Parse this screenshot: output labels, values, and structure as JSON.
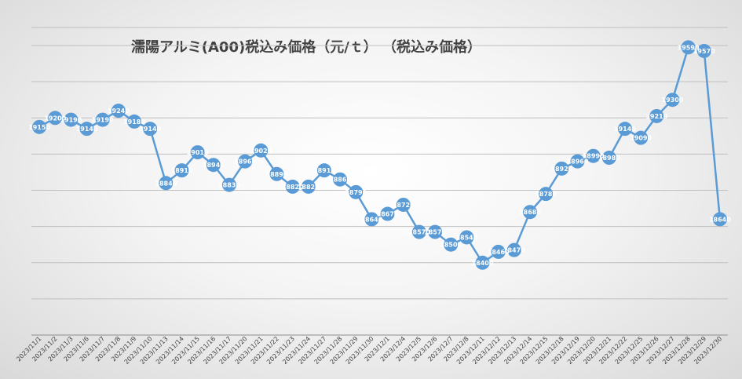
{
  "chart_data": {
    "type": "line",
    "title": "濡陽アルミ(A00)税込み価格（元/ｔ） （税込み価格）",
    "xlabel": "",
    "ylabel": "",
    "ylim": [
      18000,
      19700
    ],
    "grid": true,
    "legend": "none",
    "marker_color": "#5b9bd5",
    "categories": [
      "2023/11/1",
      "2023/11/2",
      "2023/11/3",
      "2023/11/6",
      "2023/11/7",
      "2023/11/8",
      "2023/11/9",
      "2023/11/10",
      "2023/11/13",
      "2023/11/14",
      "2023/11/15",
      "2023/11/16",
      "2023/11/17",
      "2023/11/20",
      "2023/11/21",
      "2023/11/22",
      "2023/11/23",
      "2023/11/24",
      "2023/11/27",
      "2023/11/28",
      "2023/11/29",
      "2023/11/30",
      "2023/12/1",
      "2023/12/4",
      "2023/12/5",
      "2023/12/6",
      "2023/12/7",
      "2023/12/8",
      "2023/12/11",
      "2023/12/12",
      "2023/12/13",
      "2023/12/14",
      "2023/12/15",
      "2023/12/18",
      "2023/12/19",
      "2023/12/20",
      "2023/12/21",
      "2023/12/22",
      "2023/12/25",
      "2023/12/26",
      "2023/12/27",
      "2023/12/28",
      "2023/12/29",
      "2023/12/30"
    ],
    "series": [
      {
        "values": [
          19150,
          19200,
          19190,
          19140,
          19190,
          19240,
          19180,
          19140,
          18840,
          18910,
          19010,
          18940,
          18830,
          18960,
          19020,
          18890,
          18820,
          18820,
          18910,
          18860,
          18790,
          18640,
          18670,
          18720,
          18570,
          18570,
          18500,
          18540,
          18400,
          18460,
          18470,
          18680,
          18780,
          18920,
          18960,
          18990,
          18980,
          19140,
          19090,
          19210,
          19300,
          19590,
          19570,
          18640
        ]
      }
    ]
  }
}
